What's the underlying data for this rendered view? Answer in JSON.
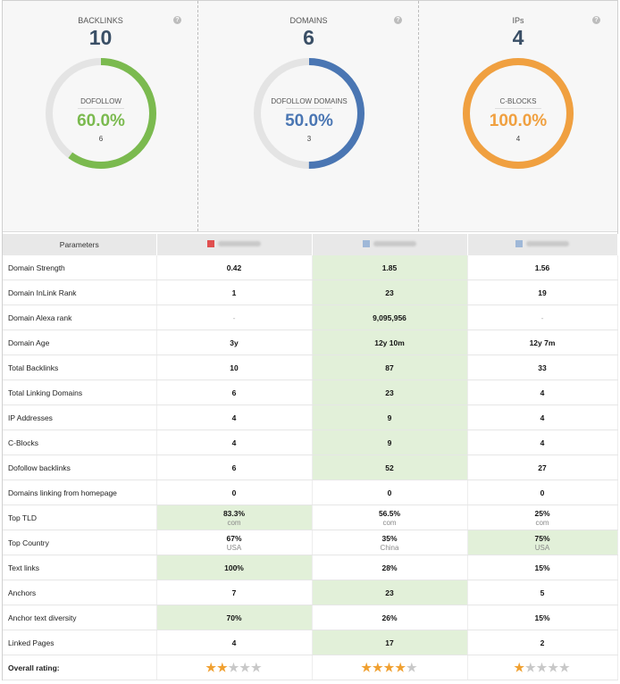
{
  "cards": [
    {
      "title": "BACKLINKS",
      "count": "10",
      "ring_label": "DOFOLLOW",
      "percent": "60.0%",
      "sub_count": "6",
      "fraction": 0.6,
      "color": "#7bba4f"
    },
    {
      "title": "DOMAINS",
      "count": "6",
      "ring_label": "DOFOLLOW DOMAINS",
      "percent": "50.0%",
      "sub_count": "3",
      "fraction": 0.5,
      "color": "#4a76b3"
    },
    {
      "title": "IPs",
      "count": "4",
      "ring_label": "C-BLOCKS",
      "percent": "100.0%",
      "sub_count": "4",
      "fraction": 1.0,
      "color": "#f0a040"
    }
  ],
  "help_glyph": "?",
  "table": {
    "param_header": "Parameters",
    "domains": [
      {
        "icon": "bar-chart-favicon",
        "icon_color": "#e05050"
      },
      {
        "icon": "page-favicon",
        "icon_color": "#9fb8d8"
      },
      {
        "icon": "page-favicon",
        "icon_color": "#9fb8d8"
      }
    ],
    "rows": [
      {
        "label": "Domain Strength",
        "cells": [
          {
            "v": "0.42"
          },
          {
            "v": "1.85",
            "hl": true
          },
          {
            "v": "1.56"
          }
        ]
      },
      {
        "label": "Domain InLink Rank",
        "cells": [
          {
            "v": "1"
          },
          {
            "v": "23",
            "hl": true
          },
          {
            "v": "19"
          }
        ]
      },
      {
        "label": "Domain Alexa rank",
        "cells": [
          {
            "v": "-",
            "muted": true
          },
          {
            "v": "9,095,956",
            "hl": true
          },
          {
            "v": "-",
            "muted": true
          }
        ]
      },
      {
        "label": "Domain Age",
        "cells": [
          {
            "v": "3y"
          },
          {
            "v": "12y 10m",
            "hl": true
          },
          {
            "v": "12y 7m"
          }
        ]
      },
      {
        "label": "Total Backlinks",
        "cells": [
          {
            "v": "10"
          },
          {
            "v": "87",
            "hl": true
          },
          {
            "v": "33"
          }
        ]
      },
      {
        "label": "Total Linking Domains",
        "cells": [
          {
            "v": "6"
          },
          {
            "v": "23",
            "hl": true
          },
          {
            "v": "4"
          }
        ]
      },
      {
        "label": "IP Addresses",
        "cells": [
          {
            "v": "4"
          },
          {
            "v": "9",
            "hl": true
          },
          {
            "v": "4"
          }
        ]
      },
      {
        "label": "C-Blocks",
        "cells": [
          {
            "v": "4"
          },
          {
            "v": "9",
            "hl": true
          },
          {
            "v": "4"
          }
        ]
      },
      {
        "label": "Dofollow backlinks",
        "cells": [
          {
            "v": "6"
          },
          {
            "v": "52",
            "hl": true
          },
          {
            "v": "27"
          }
        ]
      },
      {
        "label": "Domains linking from homepage",
        "cells": [
          {
            "v": "0"
          },
          {
            "v": "0"
          },
          {
            "v": "0"
          }
        ]
      },
      {
        "label": "Top TLD",
        "cells": [
          {
            "v": "83.3%",
            "sub": "com",
            "hl": true
          },
          {
            "v": "56.5%",
            "sub": "com"
          },
          {
            "v": "25%",
            "sub": "com"
          }
        ]
      },
      {
        "label": "Top Country",
        "cells": [
          {
            "v": "67%",
            "sub": "USA"
          },
          {
            "v": "35%",
            "sub": "China"
          },
          {
            "v": "75%",
            "sub": "USA",
            "hl": true
          }
        ]
      },
      {
        "label": "Text links",
        "cells": [
          {
            "v": "100%",
            "hl": true
          },
          {
            "v": "28%"
          },
          {
            "v": "15%"
          }
        ]
      },
      {
        "label": "Anchors",
        "cells": [
          {
            "v": "7"
          },
          {
            "v": "23",
            "hl": true
          },
          {
            "v": "5"
          }
        ]
      },
      {
        "label": "Anchor text diversity",
        "cells": [
          {
            "v": "70%",
            "hl": true
          },
          {
            "v": "26%"
          },
          {
            "v": "15%"
          }
        ]
      },
      {
        "label": "Linked Pages",
        "cells": [
          {
            "v": "4"
          },
          {
            "v": "17",
            "hl": true
          },
          {
            "v": "2"
          }
        ]
      }
    ],
    "rating_label": "Overall rating:",
    "ratings": [
      2,
      4,
      1
    ],
    "rating_max": 5
  }
}
